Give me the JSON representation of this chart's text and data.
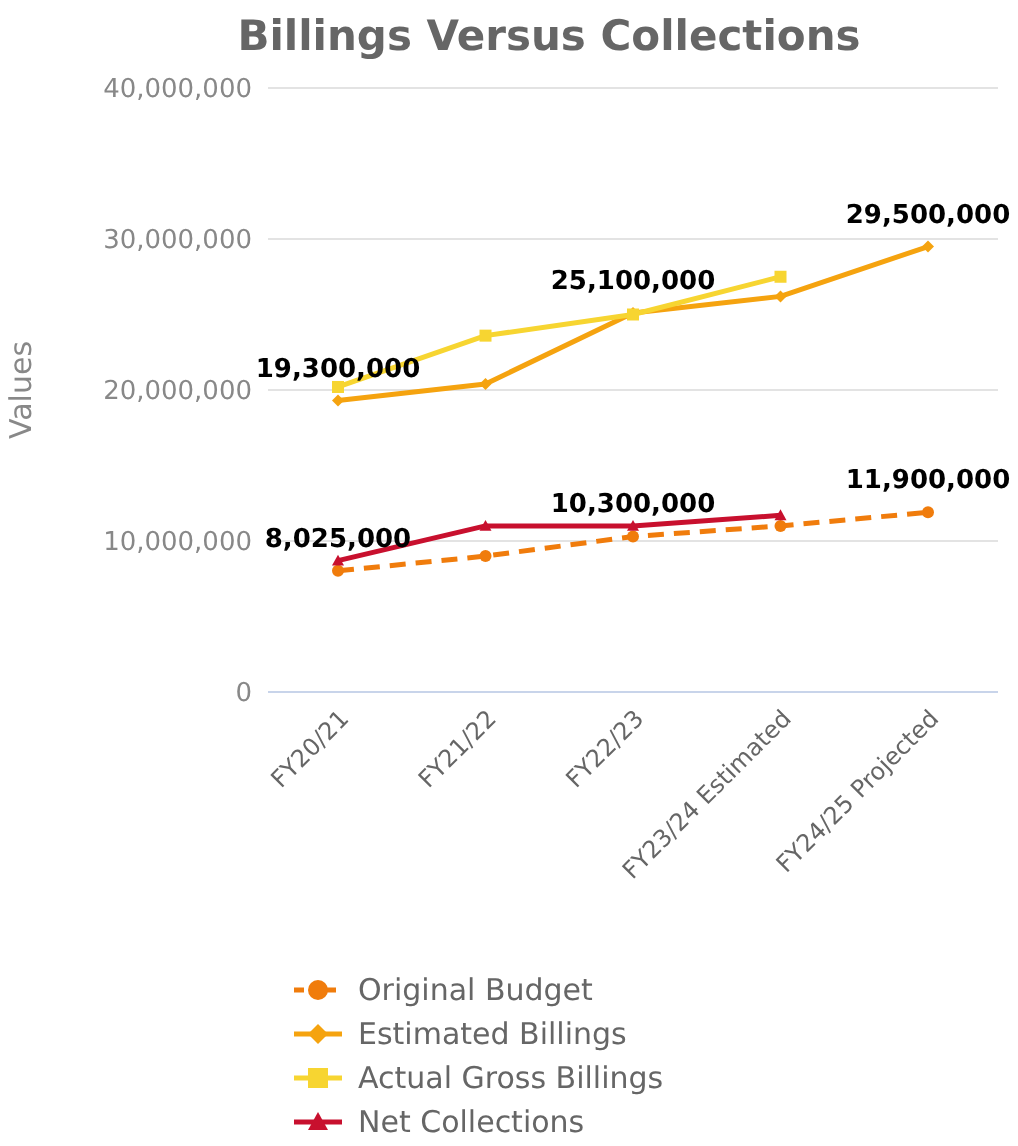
{
  "chart_data": {
    "type": "line",
    "title": "Billings Versus Collections",
    "ylabel": "Values",
    "categories": [
      "FY20/21",
      "FY21/22",
      "FY22/23",
      "FY23/24 Estimated",
      "FY24/25 Projected"
    ],
    "series": [
      {
        "name": "Original Budget",
        "color": "#f07c0c",
        "marker": "circle",
        "line_style": "dashed",
        "values": [
          8025000,
          9000000,
          10300000,
          11000000,
          11900000
        ],
        "value_labels": [
          "8,025,000",
          null,
          "10,300,000",
          null,
          "11,900,000"
        ]
      },
      {
        "name": "Estimated Billings",
        "color": "#f5a30f",
        "marker": "diamond",
        "line_style": "solid",
        "values": [
          19300000,
          20400000,
          25100000,
          26200000,
          29500000
        ],
        "value_labels": [
          "19,300,000",
          null,
          "25,100,000",
          null,
          "29,500,000"
        ]
      },
      {
        "name": "Actual Gross Billings",
        "color": "#f7d531",
        "marker": "square",
        "line_style": "solid",
        "values": [
          20200000,
          23600000,
          25000000,
          27500000,
          null
        ]
      },
      {
        "name": "Net Collections",
        "color": "#c8102e",
        "marker": "triangle",
        "line_style": "solid",
        "values": [
          8700000,
          11000000,
          11000000,
          11700000,
          null
        ]
      }
    ],
    "ylim": [
      0,
      40000000
    ],
    "yticks": [
      0,
      {
        "value": 10000000,
        "label": "10,000,000"
      },
      {
        "value": 20000000,
        "label": "20,000,000"
      },
      {
        "value": 30000000,
        "label": "30,000,000"
      },
      {
        "value": 40000000,
        "label": "40,000,000"
      }
    ],
    "grid": "y",
    "legend": "bottom"
  }
}
